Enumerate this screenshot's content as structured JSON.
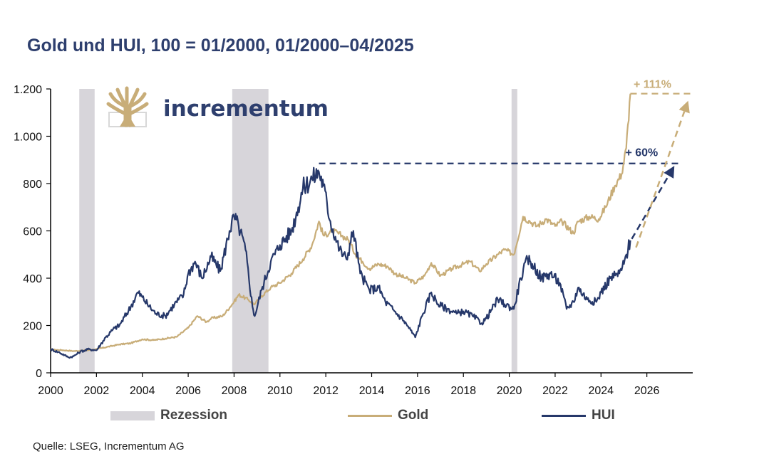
{
  "title": "Gold und HUI, 100 = 01/2000, 01/2000–04/2025",
  "source": "Quelle: LSEG, Incrementum AG",
  "logo": {
    "text": "incrementum"
  },
  "colors": {
    "gold": "#c8ad78",
    "hui": "#26386a",
    "recession": "#d7d5da",
    "axis": "#000000",
    "title": "#2e3f6e"
  },
  "legend": [
    {
      "label": "Rezession",
      "key": "recession"
    },
    {
      "label": "Gold",
      "key": "gold"
    },
    {
      "label": "HUI",
      "key": "hui"
    }
  ],
  "chart_data": {
    "type": "line",
    "title": "Gold und HUI, 100 = 01/2000, 01/2000–04/2025",
    "xlabel": "",
    "ylabel": "",
    "xlim": [
      2000,
      2028
    ],
    "ylim": [
      0,
      1200
    ],
    "x_ticks": [
      2000,
      2002,
      2004,
      2006,
      2008,
      2010,
      2012,
      2014,
      2016,
      2018,
      2020,
      2022,
      2024,
      2026
    ],
    "y_ticks": [
      {
        "value": 0,
        "label": "0"
      },
      {
        "value": 200,
        "label": "200"
      },
      {
        "value": 400,
        "label": "400"
      },
      {
        "value": 600,
        "label": "600"
      },
      {
        "value": 800,
        "label": "800"
      },
      {
        "value": 1000,
        "label": "1.000"
      },
      {
        "value": 1200,
        "label": "1.200"
      }
    ],
    "grid": false,
    "recessions": [
      [
        2001.25,
        2001.92
      ],
      [
        2007.92,
        2009.5
      ],
      [
        2020.1,
        2020.35
      ]
    ],
    "series": [
      {
        "name": "Gold",
        "x": [
          2000.0,
          2000.5,
          2001.0,
          2001.5,
          2002.0,
          2002.5,
          2003.0,
          2003.5,
          2004.0,
          2004.5,
          2005.0,
          2005.5,
          2006.0,
          2006.4,
          2006.8,
          2007.0,
          2007.5,
          2008.0,
          2008.2,
          2008.6,
          2008.9,
          2009.2,
          2009.6,
          2010.0,
          2010.5,
          2011.0,
          2011.4,
          2011.7,
          2011.9,
          2012.3,
          2012.7,
          2013.0,
          2013.3,
          2013.6,
          2013.9,
          2014.3,
          2014.7,
          2015.0,
          2015.5,
          2015.9,
          2016.3,
          2016.6,
          2017.0,
          2017.5,
          2018.0,
          2018.3,
          2018.7,
          2019.0,
          2019.5,
          2019.8,
          2020.2,
          2020.6,
          2020.9,
          2021.2,
          2021.6,
          2022.0,
          2022.3,
          2022.8,
          2023.0,
          2023.5,
          2023.9,
          2024.2,
          2024.6,
          2024.9,
          2025.1,
          2025.28
        ],
        "values": [
          98,
          96,
          92,
          94,
          100,
          110,
          120,
          125,
          142,
          138,
          145,
          152,
          190,
          240,
          215,
          230,
          240,
          300,
          330,
          310,
          290,
          325,
          360,
          380,
          420,
          480,
          540,
          640,
          580,
          600,
          580,
          560,
          500,
          470,
          440,
          460,
          450,
          420,
          400,
          380,
          410,
          465,
          410,
          440,
          460,
          470,
          430,
          460,
          500,
          520,
          500,
          660,
          640,
          620,
          650,
          620,
          640,
          590,
          640,
          660,
          650,
          700,
          790,
          840,
          950,
          1180
        ]
      },
      {
        "name": "HUI",
        "x": [
          2000.0,
          2000.4,
          2000.8,
          2001.0,
          2001.3,
          2001.7,
          2002.0,
          2002.4,
          2002.8,
          2003.0,
          2003.5,
          2003.8,
          2004.0,
          2004.3,
          2004.6,
          2005.0,
          2005.4,
          2005.8,
          2006.0,
          2006.3,
          2006.6,
          2007.0,
          2007.4,
          2007.8,
          2008.0,
          2008.2,
          2008.5,
          2008.8,
          2008.9,
          2009.2,
          2009.6,
          2010.0,
          2010.5,
          2010.8,
          2011.0,
          2011.4,
          2011.7,
          2011.9,
          2012.2,
          2012.6,
          2012.9,
          2013.2,
          2013.5,
          2013.9,
          2014.3,
          2014.6,
          2015.0,
          2015.4,
          2015.7,
          2015.9,
          2016.2,
          2016.6,
          2016.9,
          2017.3,
          2017.7,
          2018.0,
          2018.4,
          2018.8,
          2019.0,
          2019.5,
          2019.8,
          2020.2,
          2020.5,
          2020.8,
          2021.0,
          2021.4,
          2021.8,
          2022.2,
          2022.5,
          2022.8,
          2023.0,
          2023.4,
          2023.8,
          2024.0,
          2024.4,
          2024.8,
          2025.0,
          2025.28
        ],
        "values": [
          100,
          85,
          65,
          70,
          90,
          100,
          95,
          150,
          190,
          200,
          280,
          340,
          320,
          280,
          250,
          240,
          290,
          330,
          420,
          470,
          400,
          490,
          430,
          600,
          660,
          620,
          520,
          280,
          240,
          350,
          470,
          540,
          600,
          700,
          780,
          820,
          850,
          790,
          640,
          520,
          480,
          600,
          420,
          350,
          360,
          300,
          260,
          220,
          180,
          150,
          240,
          340,
          290,
          270,
          250,
          260,
          240,
          210,
          230,
          310,
          290,
          270,
          400,
          480,
          460,
          400,
          420,
          380,
          270,
          300,
          360,
          310,
          300,
          340,
          400,
          420,
          460,
          560
        ]
      }
    ],
    "annotations": [
      {
        "text": "+ 111%",
        "series": "Gold"
      },
      {
        "text": "+ 60%",
        "series": "HUI"
      }
    ]
  }
}
